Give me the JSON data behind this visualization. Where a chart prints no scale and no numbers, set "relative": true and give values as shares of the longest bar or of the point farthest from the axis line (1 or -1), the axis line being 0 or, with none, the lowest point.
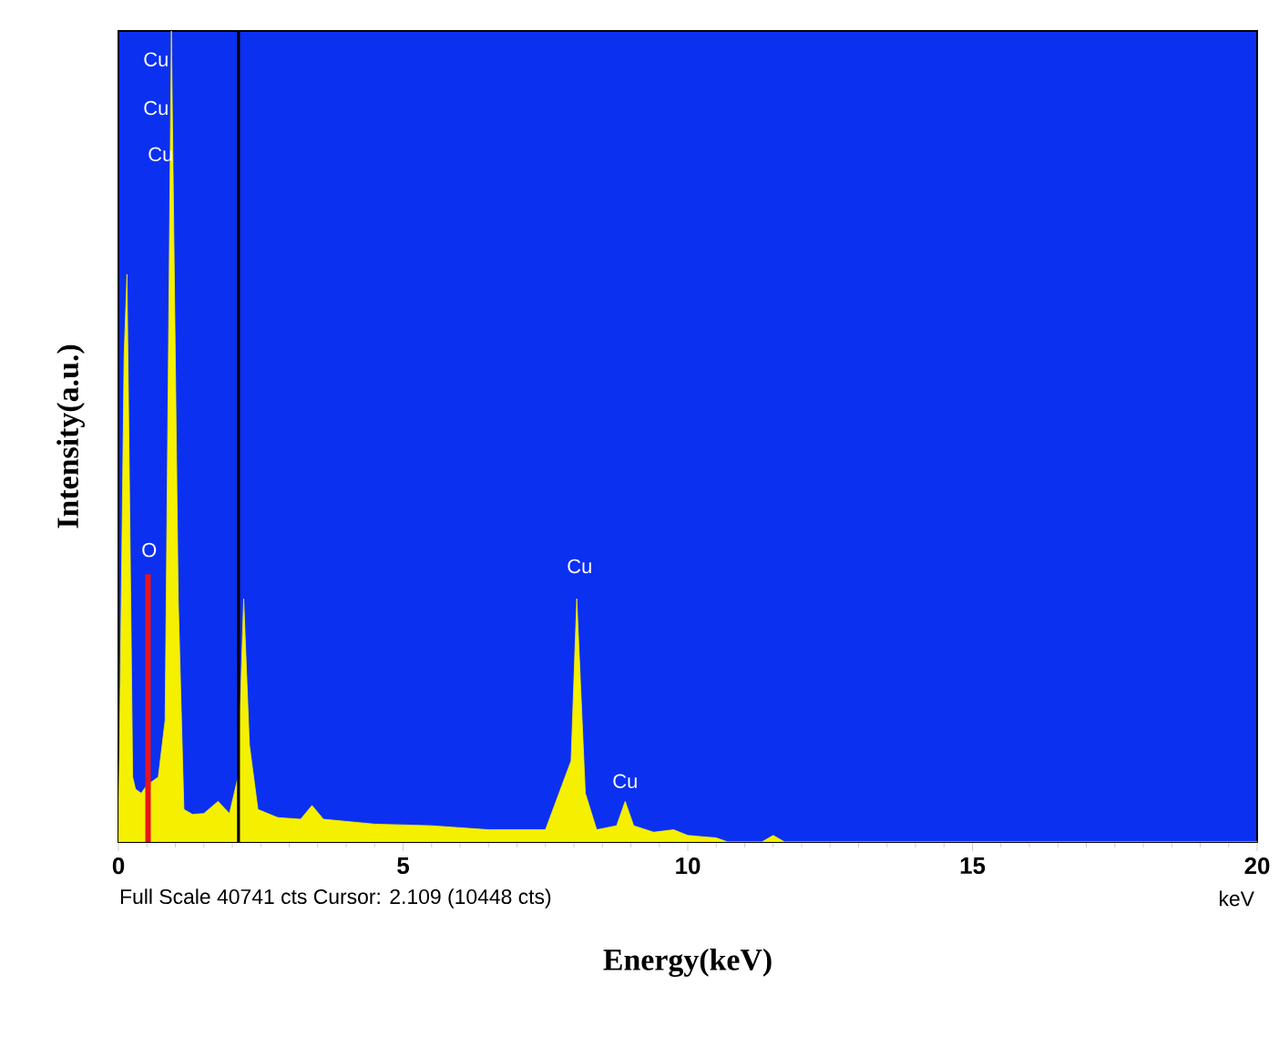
{
  "chart_data": {
    "type": "area",
    "relative": true,
    "xlabel": "Energy(keV)",
    "ylabel": "Intensity(a.u.)",
    "xlim": [
      0,
      20
    ],
    "xticks": [
      0,
      5,
      10,
      15,
      20
    ],
    "series": [
      {
        "color": "#f5f000",
        "x": [
          0,
          0.05,
          0.1,
          0.15,
          0.2,
          0.25,
          0.3,
          0.4,
          0.5,
          0.7,
          0.82,
          0.93,
          1.05,
          1.15,
          1.3,
          1.5,
          1.75,
          1.95,
          2.1,
          2.2,
          2.3,
          2.45,
          2.8,
          3.2,
          3.4,
          3.6,
          4.5,
          5.5,
          6.5,
          7.5,
          7.95,
          8.05,
          8.2,
          8.4,
          8.75,
          8.9,
          9.05,
          9.4,
          9.75,
          10,
          10.5,
          10.7,
          11.3,
          11.5,
          11.7,
          20
        ],
        "values": [
          0,
          0.3,
          0.6,
          0.7,
          0.4,
          0.08,
          0.065,
          0.06,
          0.07,
          0.08,
          0.15,
          1,
          0.3,
          0.04,
          0.034,
          0.035,
          0.05,
          0.035,
          0.08,
          0.3,
          0.12,
          0.04,
          0.03,
          0.028,
          0.045,
          0.028,
          0.022,
          0.02,
          0.015,
          0.015,
          0.1,
          0.3,
          0.06,
          0.015,
          0.02,
          0.05,
          0.02,
          0.012,
          0.015,
          0.008,
          0.005,
          0,
          0,
          0.008,
          0,
          0
        ]
      },
      {
        "type": "line",
        "color": "#e8141e",
        "x": [
          0.52,
          0.52
        ],
        "values": [
          0,
          0.33
        ]
      }
    ],
    "ref_lines": [
      {
        "axis": "x",
        "value": 2.109,
        "color": "#000000"
      }
    ],
    "annotations": [
      "Cu",
      "Cu",
      "Cu",
      "O",
      "Cu",
      "Cu",
      "Full Scale 40741 cts Cursor: 2.109  (10448 cts)",
      "keV"
    ]
  }
}
